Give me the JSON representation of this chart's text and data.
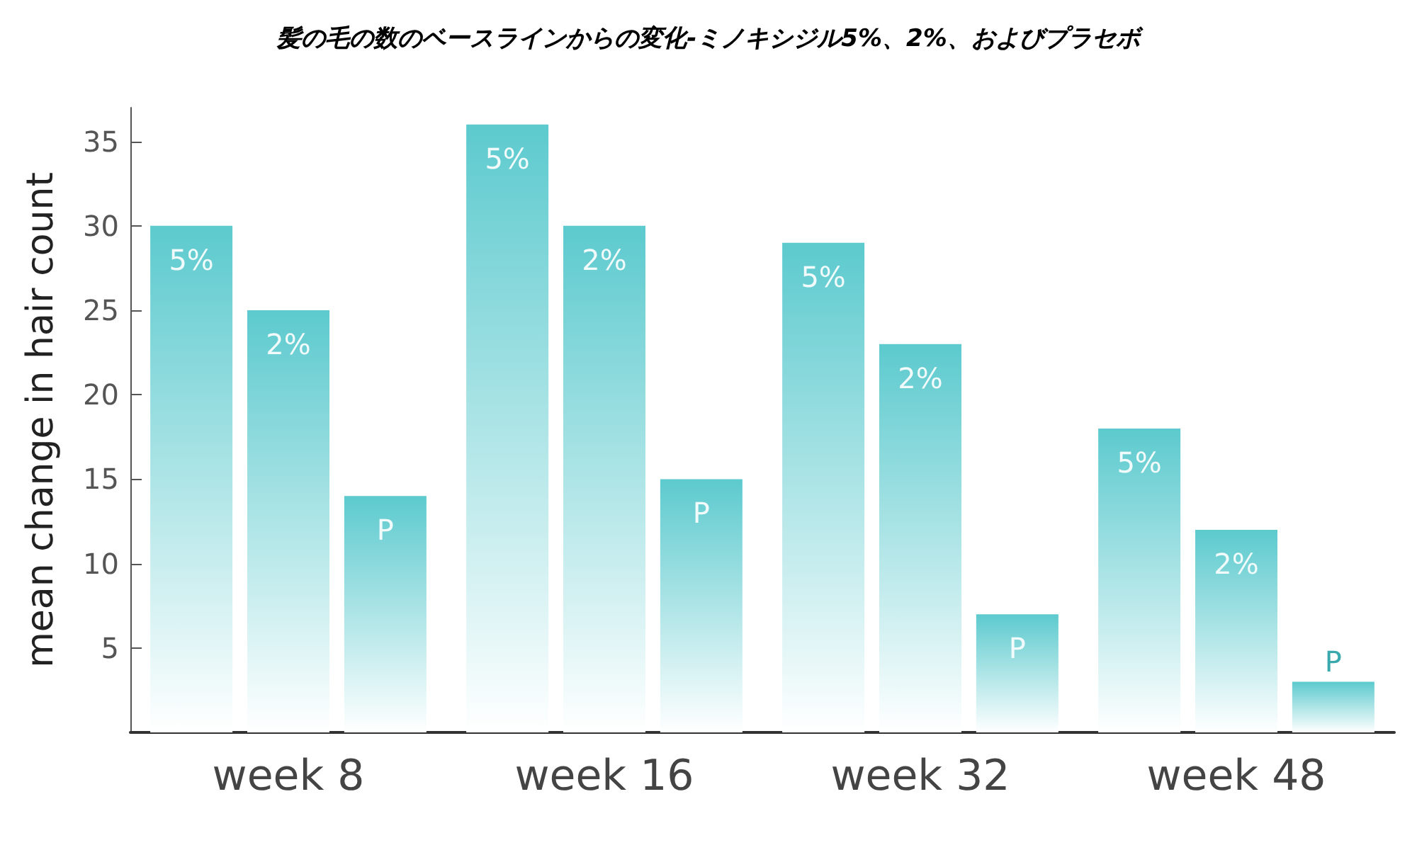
{
  "chart_data": {
    "type": "bar",
    "title": "髪の毛の数のベースラインからの変化-ミノキシジル5%、2%、およびプラセボ",
    "ylabel": "mean change in hair count",
    "categories": [
      "week 8",
      "week 16",
      "week 32",
      "week 48"
    ],
    "series": [
      {
        "name": "5%",
        "color": "#5ccace",
        "values": [
          30,
          36,
          29,
          18
        ]
      },
      {
        "name": "2%",
        "color": "#5ccace",
        "values": [
          25,
          30,
          23,
          12
        ]
      },
      {
        "name": "P",
        "color": "#5ccace",
        "values": [
          14,
          15,
          7,
          3
        ]
      }
    ],
    "ylim": [
      0,
      37
    ],
    "yticks": [
      5,
      10,
      15,
      20,
      25,
      30,
      35
    ],
    "grid": false,
    "legend": false
  }
}
